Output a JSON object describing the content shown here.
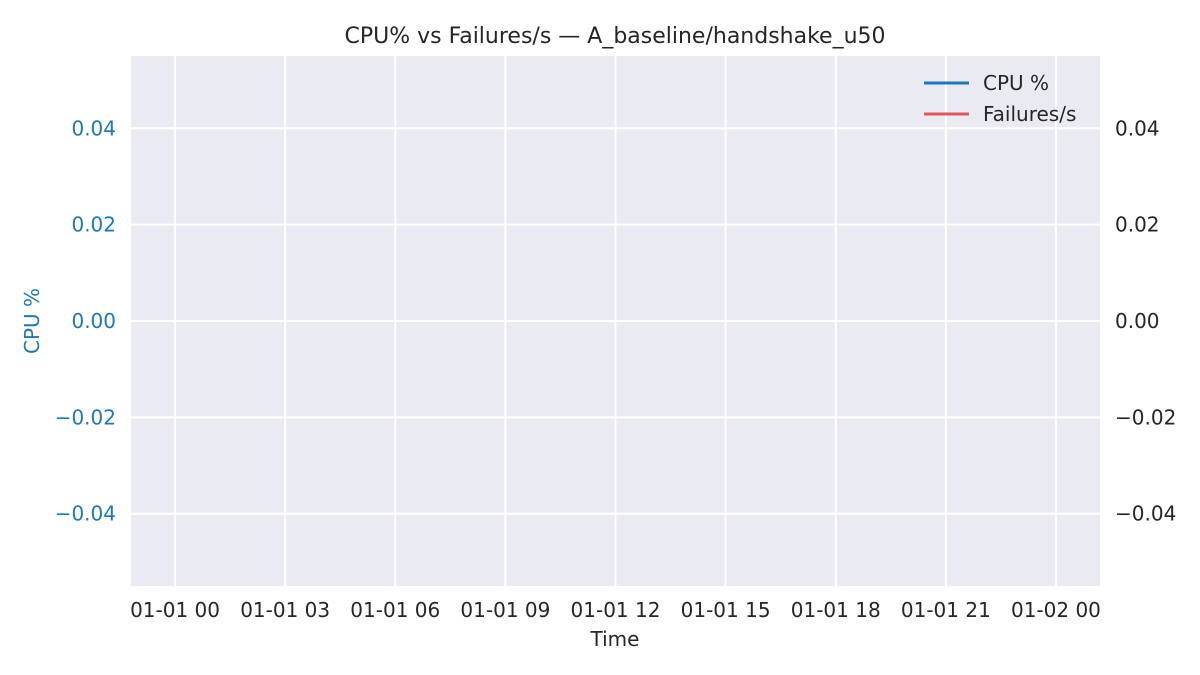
{
  "chart_data": {
    "type": "line",
    "title": "CPU% vs Failures/s — A_baseline/handshake_u50",
    "xlabel": "Time",
    "ylabel_left": "CPU %",
    "ylabel_right": "",
    "x_ticks": [
      "01-01 00",
      "01-01 03",
      "01-01 06",
      "01-01 09",
      "01-01 12",
      "01-01 15",
      "01-01 18",
      "01-01 21",
      "01-02 00"
    ],
    "y_ticks_left": [
      "0.04",
      "0.02",
      "0.00",
      "−0.02",
      "−0.04"
    ],
    "y_ticks_right": [
      "0.04",
      "0.02",
      "0.00",
      "−0.02",
      "−0.04"
    ],
    "ylim_left": [
      -0.055,
      0.055
    ],
    "ylim_right": [
      -0.055,
      0.055
    ],
    "grid": true,
    "legend_position": "top-right",
    "series": [
      {
        "name": "CPU %",
        "axis": "left",
        "color": "#1f77b4",
        "values": []
      },
      {
        "name": "Failures/s",
        "axis": "right",
        "color": "#e15759",
        "values": []
      }
    ],
    "colors": {
      "background": "#eaeaf2",
      "grid": "#ffffff",
      "left_axis": "#1f77b4",
      "text": "#262626"
    }
  }
}
